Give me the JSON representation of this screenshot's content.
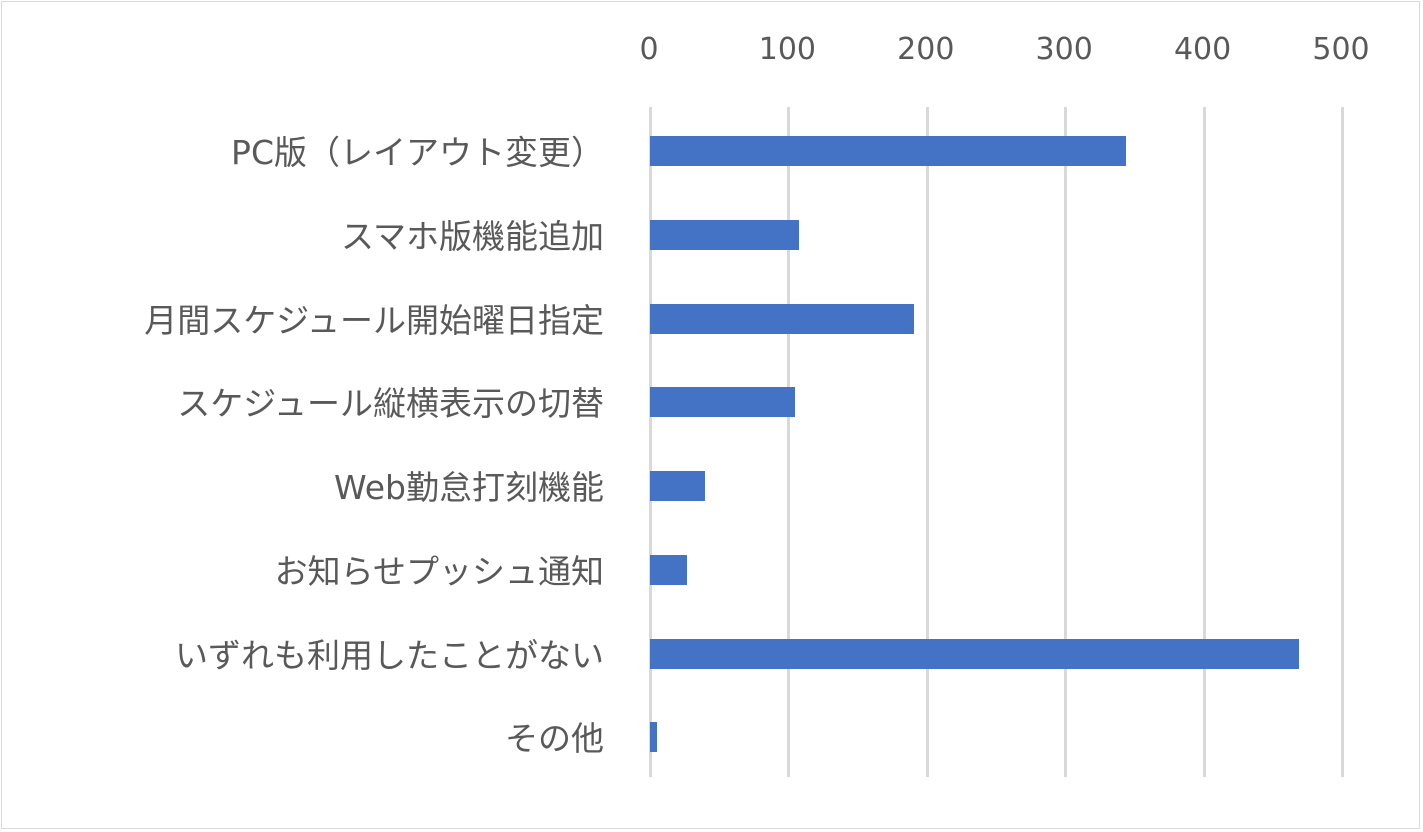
{
  "chart_data": {
    "type": "bar",
    "orientation": "horizontal",
    "title": "",
    "xlabel": "",
    "ylabel": "",
    "categories": [
      "PC版（レイアウト変更）",
      "スマホ版機能追加",
      "月間スケジュール開始曜日指定",
      "スケジュール縦横表示の切替",
      "Web勤怠打刻機能",
      "お知らせプッシュ通知",
      "いずれも利用したことがない",
      "その他"
    ],
    "values": [
      344,
      108,
      191,
      105,
      40,
      27,
      469,
      5
    ],
    "xlim": [
      0,
      500
    ],
    "xticks": [
      "0",
      "100",
      "200",
      "300",
      "400",
      "500"
    ],
    "x_axis_position": "top",
    "grid": "vertical",
    "legend": "none",
    "bar_color": "#4472c4"
  }
}
